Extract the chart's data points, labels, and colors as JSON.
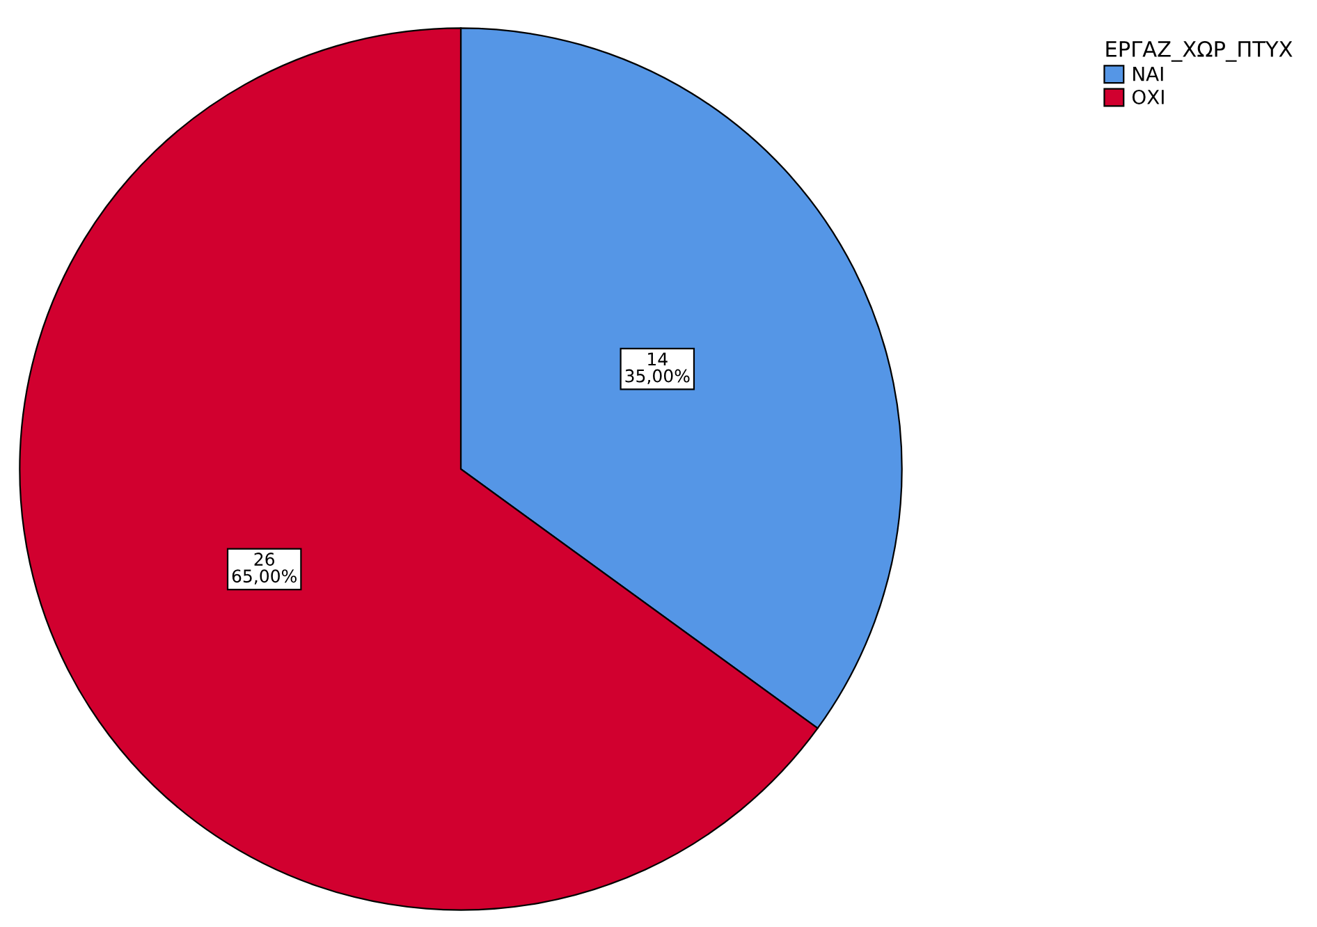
{
  "chart_data": {
    "type": "pie",
    "legend_title": "ΕΡΓΑΖ_ΧΩΡ_ΠΤΥΧ",
    "categories": [
      "ΝΑΙ",
      "ΟΧΙ"
    ],
    "values": [
      14,
      26
    ],
    "colors": [
      "#5596e6",
      "#d1002f"
    ],
    "value_labels": [
      "14\n35,00%",
      "26\n65,00%"
    ],
    "legend": "top right"
  }
}
